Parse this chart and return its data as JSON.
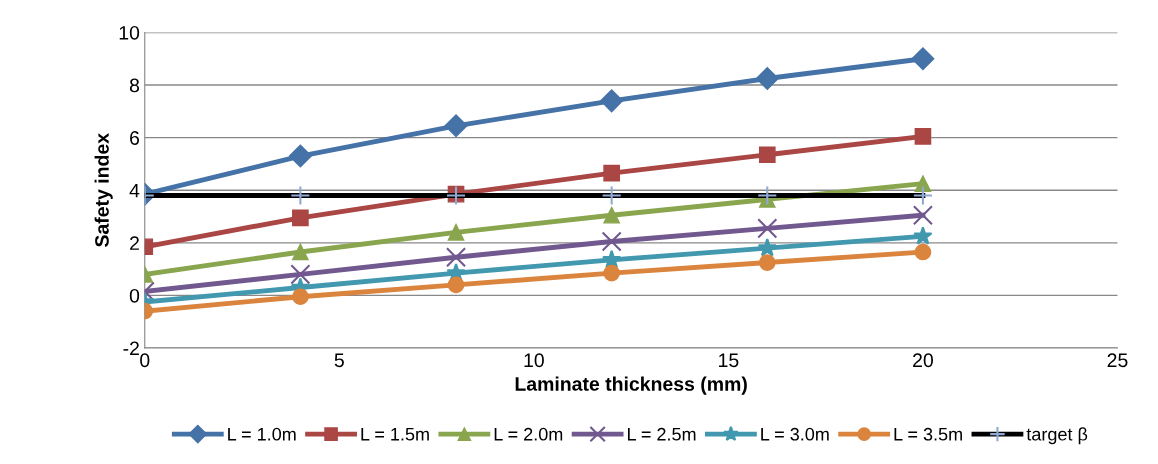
{
  "chart_data": {
    "type": "line",
    "xlabel": "Laminate thickness (mm)",
    "ylabel": "Safety index",
    "x": [
      0,
      4,
      8,
      12,
      16,
      20
    ],
    "series": [
      {
        "name": "L = 1.0m",
        "color": "#4572a7",
        "marker": "diamond",
        "values": [
          3.85,
          5.3,
          6.45,
          7.4,
          8.25,
          9.0
        ]
      },
      {
        "name": "L = 1.5m",
        "color": "#aa4643",
        "marker": "square",
        "values": [
          1.85,
          2.95,
          3.85,
          4.65,
          5.35,
          6.05
        ]
      },
      {
        "name": "L = 2.0m",
        "color": "#89a54e",
        "marker": "triangle",
        "values": [
          0.8,
          1.65,
          2.4,
          3.05,
          3.65,
          4.25
        ]
      },
      {
        "name": "L = 2.5m",
        "color": "#71588f",
        "marker": "cross",
        "values": [
          0.15,
          0.8,
          1.45,
          2.05,
          2.55,
          3.05
        ]
      },
      {
        "name": "L = 3.0m",
        "color": "#4198af",
        "marker": "star",
        "values": [
          -0.25,
          0.3,
          0.85,
          1.35,
          1.8,
          2.25
        ]
      },
      {
        "name": "L = 3.5m",
        "color": "#db843d",
        "marker": "circle",
        "values": [
          -0.6,
          -0.05,
          0.4,
          0.85,
          1.25,
          1.65
        ]
      },
      {
        "name": "target β",
        "color": "#000000",
        "marker": "plus",
        "values": [
          3.8,
          3.8,
          3.8,
          3.8,
          3.8,
          3.8
        ]
      }
    ],
    "xlim": [
      0,
      25
    ],
    "xticks": [
      0,
      5,
      10,
      15,
      20,
      25
    ],
    "ylim": [
      -2,
      10
    ],
    "yticks": [
      -2,
      0,
      2,
      4,
      6,
      8,
      10
    ],
    "grid": "y",
    "legend": "bottom",
    "line_style": "solid"
  }
}
